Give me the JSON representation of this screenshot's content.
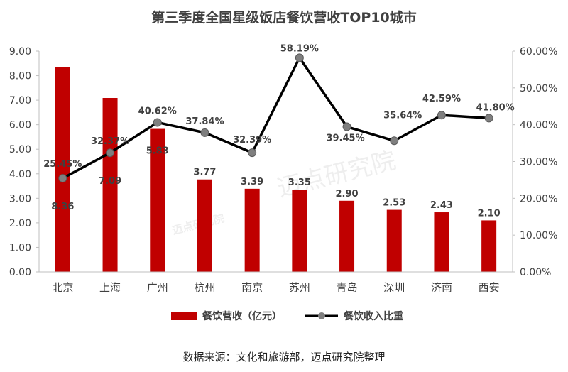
{
  "chart_data": {
    "type": "bar",
    "title": "第三季度全国星级饭店餐饮营收TOP10城市",
    "categories": [
      "北京",
      "上海",
      "广州",
      "杭州",
      "南京",
      "苏州",
      "青岛",
      "深圳",
      "济南",
      "西安"
    ],
    "series": [
      {
        "name": "餐饮营收（亿元）",
        "type": "bar",
        "axis": "left",
        "values": [
          8.36,
          7.09,
          5.83,
          3.77,
          3.39,
          3.35,
          2.9,
          2.53,
          2.43,
          2.1
        ],
        "labels": [
          "8.36",
          "7.09",
          "5.83",
          "3.77",
          "3.39",
          "3.35",
          "2.90",
          "2.53",
          "2.43",
          "2.10"
        ],
        "color": "#C00000"
      },
      {
        "name": "餐饮收入比重",
        "type": "line",
        "axis": "right",
        "values": [
          25.45,
          32.37,
          40.62,
          37.84,
          32.39,
          58.19,
          39.45,
          35.64,
          42.59,
          41.8
        ],
        "labels": [
          "25.45%",
          "32.37%",
          "40.62%",
          "37.84%",
          "32.39%",
          "58.19%",
          "39.45%",
          "35.64%",
          "42.59%",
          "41.80%"
        ],
        "color": "#000000",
        "marker_color": "#7F7F7F"
      }
    ],
    "y_left": {
      "lim": [
        0,
        9
      ],
      "ticks": [
        "0.00",
        "1.00",
        "2.00",
        "3.00",
        "4.00",
        "5.00",
        "6.00",
        "7.00",
        "8.00",
        "9.00"
      ]
    },
    "y_right": {
      "lim": [
        0,
        60
      ],
      "ticks": [
        "0.00%",
        "10.00%",
        "20.00%",
        "30.00%",
        "40.00%",
        "50.00%",
        "60.00%"
      ]
    },
    "grid": false,
    "legend_position": "bottom",
    "source": "数据来源：文化和旅游部，迈点研究院整理",
    "watermark": "迈点研究院"
  }
}
